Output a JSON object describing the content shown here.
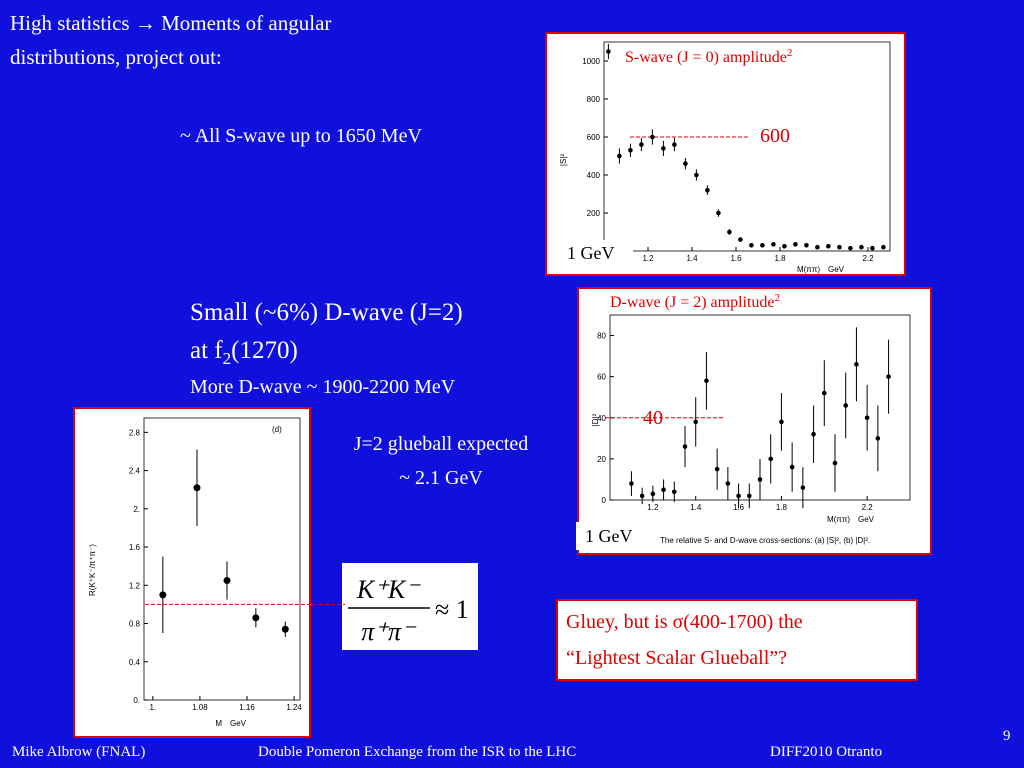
{
  "slide": {
    "title_line1": "High statistics → Moments of angular",
    "title_line2": "distributions, project out:",
    "s_wave_note": "~ All S-wave up to 1650 MeV",
    "d_wave_line1": "Small (~6%) D-wave (J=2)",
    "d_wave_line2_a": "at f",
    "d_wave_line2_sub": "2",
    "d_wave_line2_b": "(1270)",
    "d_wave_line3": "More D-wave ~ 1900-2200 MeV",
    "glueball_line1": "J=2 glueball expected",
    "glueball_line2": "~ 2.1 GeV",
    "formula": {
      "numerator": "K⁺K⁻",
      "denominator": "π⁺π⁻",
      "rhs": "≈ 1"
    },
    "gluey_line1": "Gluey, but is σ(400-1700) the",
    "gluey_line2": "“Lightest Scalar Glueball”?",
    "footer_author": "Mike Albrow (FNAL)",
    "footer_talk": "Double Pomeron Exchange from the ISR to the LHC",
    "footer_event": "DIFF2010 Otranto",
    "page_number": "9"
  },
  "chart_data": [
    {
      "type": "scatter",
      "title": "S-wave (J = 0) amplitude",
      "title_sup": "2",
      "ylabel": "|S|²",
      "xlabel": "M(ππ)",
      "xunit": "GeV",
      "note": "1 GeV",
      "x": [
        1.02,
        1.07,
        1.12,
        1.17,
        1.22,
        1.27,
        1.32,
        1.37,
        1.42,
        1.47,
        1.52,
        1.57,
        1.62,
        1.67,
        1.72,
        1.77,
        1.82,
        1.87,
        1.92,
        1.97,
        2.02,
        2.07,
        2.12,
        2.17,
        2.22,
        2.27
      ],
      "values": [
        1050,
        500,
        530,
        560,
        600,
        540,
        560,
        460,
        400,
        320,
        200,
        100,
        60,
        30,
        30,
        35,
        25,
        35,
        30,
        20,
        25,
        20,
        15,
        20,
        15,
        20
      ],
      "errors": [
        40,
        40,
        35,
        35,
        40,
        40,
        35,
        30,
        30,
        25,
        20,
        15,
        10,
        10,
        10,
        10,
        10,
        10,
        10,
        10,
        10,
        10,
        10,
        10,
        10,
        10
      ],
      "xlim": [
        1.0,
        2.3
      ],
      "ylim": [
        0,
        1100
      ],
      "xticks": [
        1.2,
        1.4,
        1.6,
        1.8,
        2.2
      ],
      "yticks": [
        200,
        400,
        600,
        800,
        1000
      ],
      "reference_line": 600,
      "color": "#000000",
      "reference_color": "#e00000"
    },
    {
      "type": "scatter",
      "title": "D-wave (J = 2) amplitude",
      "title_sup": "2",
      "ylabel": "|D|²",
      "xlabel": "M(ππ)",
      "xunit": "GeV",
      "note": "1 GeV",
      "caption": "The relative S- and D-wave cross-sections: (a) |S|², (b) |D|².",
      "x": [
        1.1,
        1.15,
        1.2,
        1.25,
        1.3,
        1.35,
        1.4,
        1.45,
        1.5,
        1.55,
        1.6,
        1.65,
        1.7,
        1.75,
        1.8,
        1.85,
        1.9,
        1.95,
        2.0,
        2.05,
        2.1,
        2.15,
        2.2,
        2.25,
        2.3
      ],
      "values": [
        8,
        2,
        3,
        5,
        4,
        26,
        38,
        58,
        15,
        8,
        2,
        2,
        10,
        20,
        38,
        16,
        6,
        32,
        52,
        18,
        46,
        66,
        40,
        30,
        60
      ],
      "errors": [
        6,
        4,
        4,
        5,
        5,
        10,
        12,
        14,
        10,
        8,
        6,
        6,
        10,
        12,
        14,
        12,
        10,
        14,
        16,
        14,
        16,
        18,
        16,
        16,
        18
      ],
      "xlim": [
        1.0,
        2.4
      ],
      "ylim": [
        0,
        90
      ],
      "xticks": [
        1.2,
        1.4,
        1.6,
        1.8,
        2.2
      ],
      "yticks": [
        0,
        20,
        40,
        60,
        80
      ],
      "reference_line": 40,
      "color": "#000000",
      "reference_color": "#e00000"
    },
    {
      "type": "scatter",
      "ylabel": "R(K⁺K⁻/π⁺π⁻)",
      "xlabel": "M",
      "xunit": "GeV",
      "panel_label": "(d)",
      "x": [
        1.017,
        1.075,
        1.126,
        1.175,
        1.225
      ],
      "values": [
        1.1,
        2.22,
        1.25,
        0.86,
        0.74
      ],
      "errors": [
        0.4,
        0.4,
        0.2,
        0.1,
        0.08
      ],
      "xlim": [
        0.985,
        1.25
      ],
      "ylim": [
        0,
        2.95
      ],
      "xticks": [
        {
          "value": 1.0,
          "label": "1."
        },
        1.08,
        1.16,
        1.24
      ],
      "yticks": [
        {
          "value": 0,
          "label": "0."
        },
        0.4,
        0.8,
        1.2,
        1.6,
        {
          "value": 2,
          "label": "2."
        },
        2.4,
        2.8
      ],
      "reference_line": 1,
      "color": "#000000",
      "reference_color": "#e00000"
    }
  ]
}
